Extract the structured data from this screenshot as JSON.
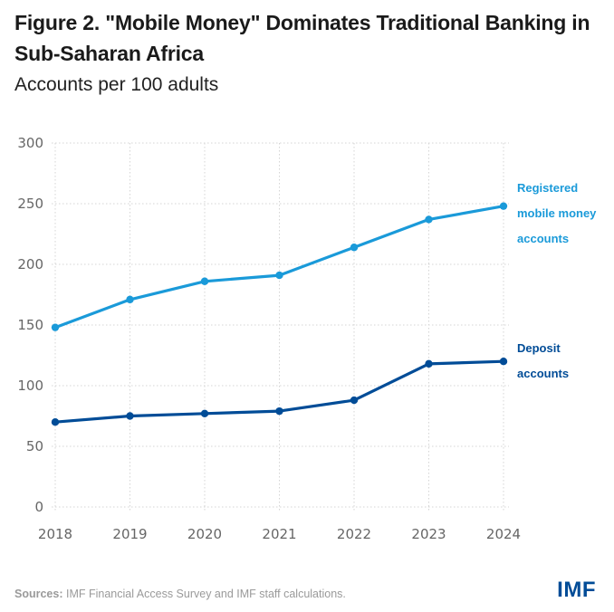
{
  "header": {
    "title": "Figure 2. \"Mobile Money\" Dominates Traditional Banking in Sub-Saharan Africa",
    "subtitle": "Accounts per 100 adults"
  },
  "footer": {
    "sources_label": "Sources:",
    "sources_text": " IMF Financial Access Survey and IMF staff calculations.",
    "logo": "IMF"
  },
  "chart_data": {
    "type": "line",
    "title": "Figure 2. \"Mobile Money\" Dominates Traditional Banking in Sub-Saharan Africa",
    "subtitle": "Accounts per 100 adults",
    "xlabel": "",
    "ylabel": "Accounts per 100 adults",
    "x": [
      "2018",
      "2019",
      "2020",
      "2021",
      "2022",
      "2023",
      "2024"
    ],
    "ylim": [
      0,
      300
    ],
    "yticks": [
      0,
      50,
      100,
      150,
      200,
      250,
      300
    ],
    "grid": true,
    "legend": "inline-right",
    "series": [
      {
        "name": "Registered mobile money accounts",
        "label_lines": [
          "Registered",
          "mobile money",
          "accounts"
        ],
        "color": "#1a9ad9",
        "values": [
          148,
          171,
          186,
          191,
          214,
          237,
          248
        ]
      },
      {
        "name": "Deposit accounts",
        "label_lines": [
          "Deposit",
          "accounts"
        ],
        "color": "#004c97",
        "values": [
          70,
          75,
          77,
          79,
          88,
          118,
          120
        ]
      }
    ]
  }
}
